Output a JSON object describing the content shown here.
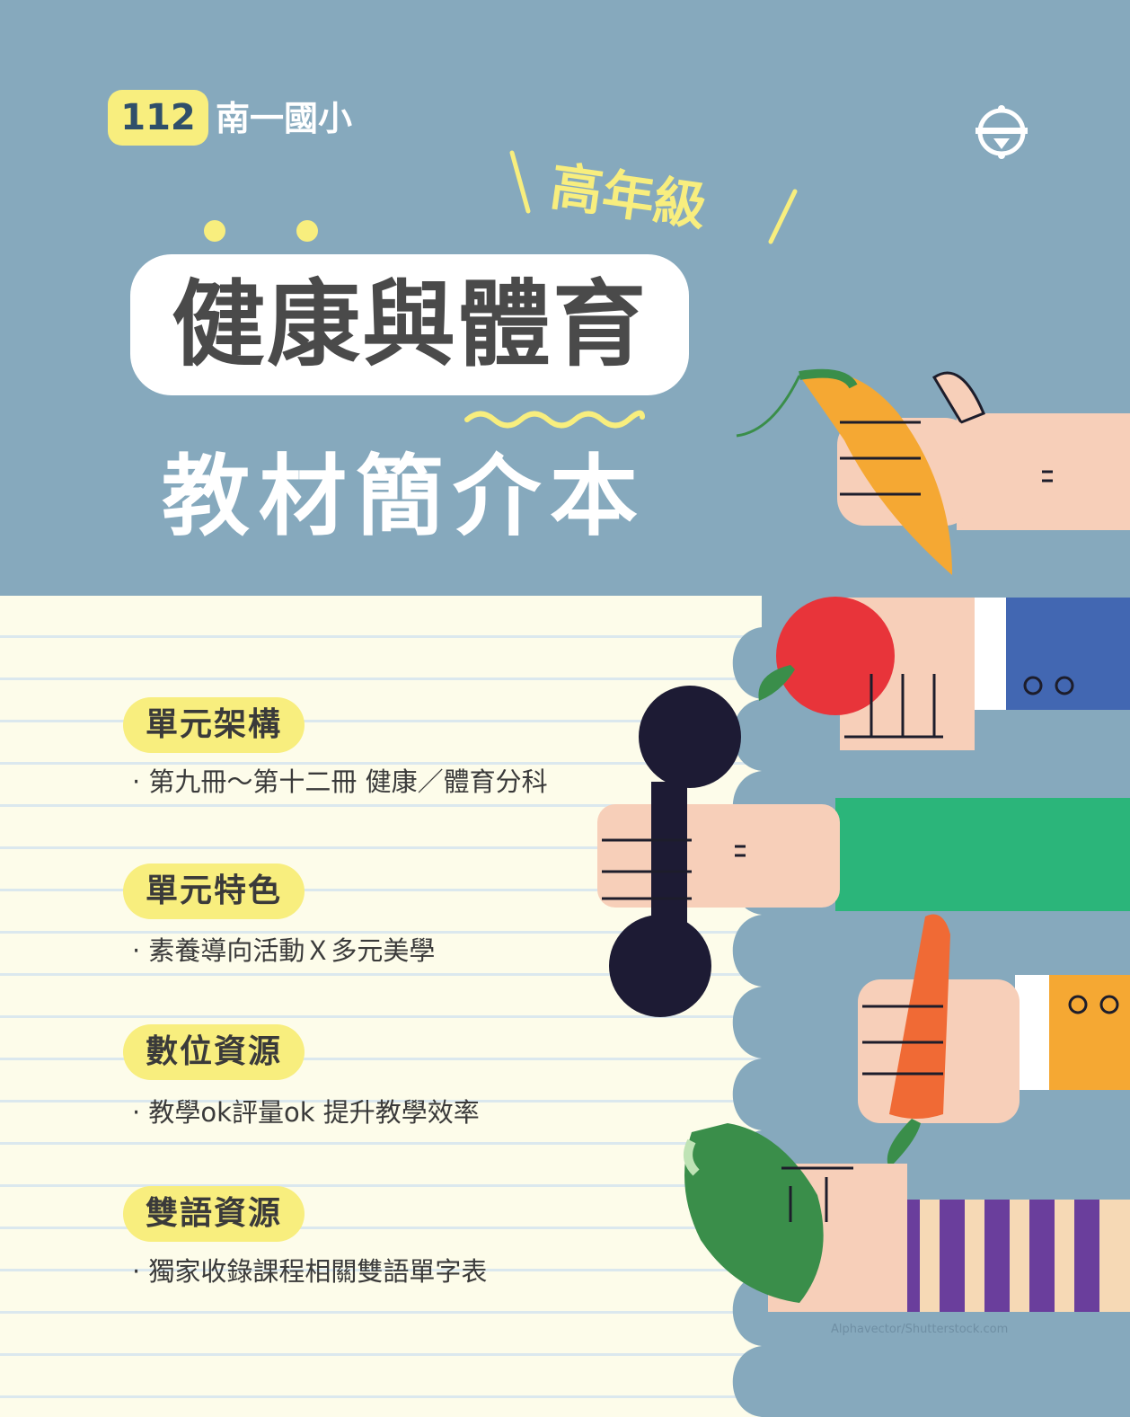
{
  "header": {
    "year": "112",
    "school": "南一國小",
    "grade": "高年級",
    "title": "健康與體育",
    "subtitle": "教材簡介本"
  },
  "sections": [
    {
      "heading": "單元架構",
      "bullet": "· 第九冊～第十二冊  健康／體育分科"
    },
    {
      "heading": "單元特色",
      "bullet": "· 素養導向活動Ｘ多元美學"
    },
    {
      "heading": "數位資源",
      "bullet": "· 教學ok評量ok 提升教學效率"
    },
    {
      "heading": "雙語資源",
      "bullet": "· 獨家收錄課程相關雙語單字表"
    }
  ],
  "credit": "Alphavector/Shutterstock.com",
  "icons": [
    "publisher-logo-icon",
    "banana-hand",
    "apple-hand",
    "dumbbell-hand",
    "carrot-hand",
    "lettuce-hand"
  ],
  "colors": {
    "background": "#86A9BD",
    "accent_yellow": "#F8EE7E",
    "paper": "#FDFCEA",
    "text": "#3A3A3A"
  }
}
